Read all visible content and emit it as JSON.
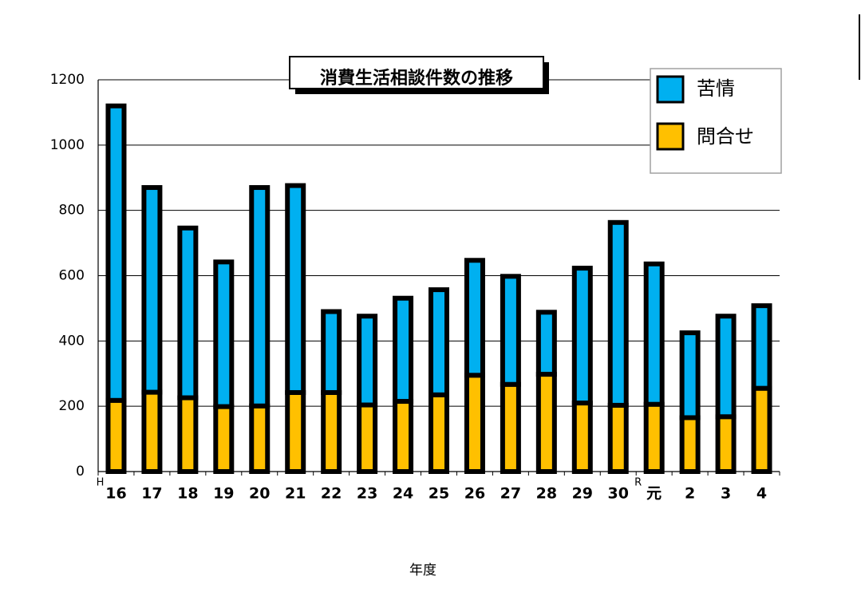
{
  "chart_data": {
    "type": "bar",
    "stacked": true,
    "title": "消費生活相談件数の推移",
    "xlabel": "年度",
    "ylabel": "",
    "ylim": [
      0,
      1200
    ],
    "yticks": [
      0,
      200,
      400,
      600,
      800,
      1000,
      1200
    ],
    "grid": true,
    "legend_position": "top-right",
    "era_prefixes": [
      {
        "index": 0,
        "text": "H"
      },
      {
        "index": 15,
        "text": "R"
      }
    ],
    "categories": [
      "16",
      "17",
      "18",
      "19",
      "20",
      "21",
      "22",
      "23",
      "24",
      "25",
      "26",
      "27",
      "28",
      "29",
      "30",
      "元",
      "2",
      "3",
      "4"
    ],
    "series": [
      {
        "name": "問合せ",
        "color": "#FFC000",
        "values": [
          218,
          243,
          226,
          199,
          201,
          242,
          242,
          204,
          215,
          235,
          295,
          267,
          298,
          210,
          203,
          206,
          165,
          168,
          255
        ]
      },
      {
        "name": "苦情",
        "color": "#00B0F0",
        "values": [
          902,
          627,
          520,
          443,
          669,
          634,
          248,
          272,
          316,
          322,
          352,
          331,
          190,
          413,
          560,
          430,
          260,
          308,
          253
        ]
      }
    ],
    "legend_order": [
      "苦情",
      "問合せ"
    ]
  }
}
